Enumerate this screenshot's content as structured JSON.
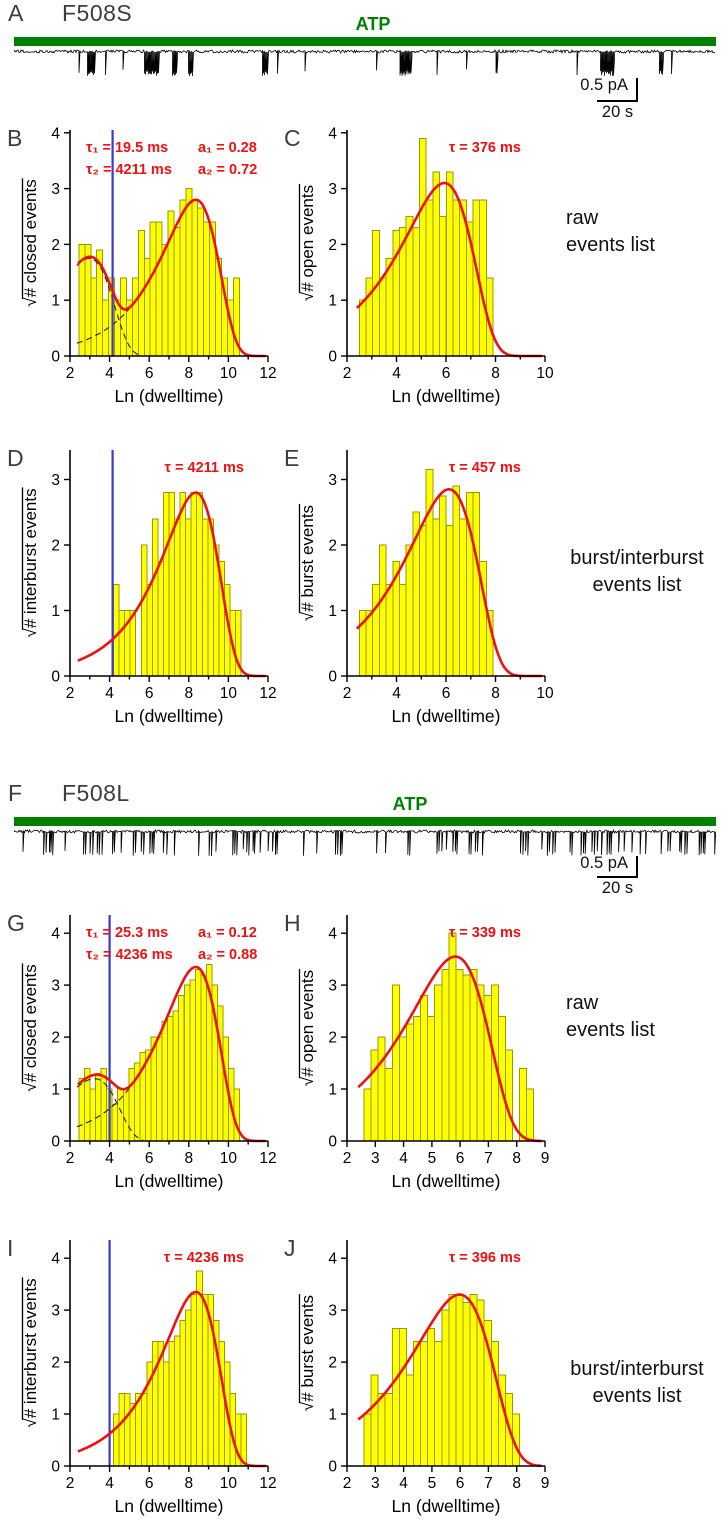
{
  "colors": {
    "bar_fill": "#ffff00",
    "bar_stroke": "#9a9a00",
    "fit_curve": "#ee1111",
    "annotation": "#ee1111",
    "threshold_line": "#3a3acc",
    "atp_green": "#008000",
    "axis": "#000000",
    "trace": "#000000",
    "panel_letter": "#3d3d3d"
  },
  "traces": [
    {
      "panel_label": "A",
      "title": "F508S",
      "atp_label": "ATP",
      "scale_vertical": "0.5 pA",
      "scale_horizontal": "20 s",
      "style": "bursty"
    },
    {
      "panel_label": "F",
      "title": "F508L",
      "atp_label": "ATP",
      "scale_vertical": "0.5 pA",
      "scale_horizontal": "20 s",
      "style": "flickery"
    }
  ],
  "side_labels": [
    {
      "lines": [
        "raw",
        "events list"
      ]
    },
    {
      "lines": [
        "burst/interburst",
        "events list"
      ]
    },
    {
      "lines": [
        "raw",
        "events list"
      ]
    },
    {
      "lines": [
        "burst/interburst",
        "events list"
      ]
    }
  ],
  "chart_data": [
    {
      "type": "bar",
      "panel": "B",
      "ylabel": "# closed events",
      "ylabel_sqrt": true,
      "xlabel": "Ln (dwelltime)",
      "xlim": [
        2,
        12
      ],
      "ylim": [
        0,
        4.05
      ],
      "xticks": [
        2,
        4,
        6,
        8,
        10,
        12
      ],
      "xminor": [
        3,
        5,
        7,
        9,
        11
      ],
      "yticks": [
        0,
        1,
        2,
        3,
        4
      ],
      "annotation_anchor": "left",
      "annotation_lines": [
        [
          "τ₁ = 19.5 ms",
          "a₁ = 0.28"
        ],
        [
          "τ₂ = 4211 ms",
          "a₂ = 0.72"
        ]
      ],
      "threshold_x": 4.15,
      "fit_components": [
        {
          "tau_ms": 19.5,
          "ln_tau": 2.97,
          "peak": 1.75,
          "show_dashed": true
        },
        {
          "tau_ms": 4211,
          "ln_tau": 8.35,
          "peak": 2.8,
          "show_dashed": true
        }
      ],
      "bins": {
        "x0": 2.45,
        "width": 0.3,
        "sqrt_counts": [
          2.0,
          2.0,
          1.4,
          1.9,
          1.0,
          1.4,
          1.0,
          1.4,
          1.0,
          1.4,
          2.25,
          1.75,
          2.4,
          2.4,
          2.0,
          2.6,
          2.3,
          2.8,
          3.0,
          2.8,
          2.65,
          2.4,
          2.4,
          1.75,
          1.4,
          1.0,
          1.4
        ]
      }
    },
    {
      "type": "bar",
      "panel": "C",
      "ylabel": "# open events",
      "ylabel_sqrt": true,
      "xlabel": "Ln (dwelltime)",
      "xlim": [
        2,
        10
      ],
      "ylim": [
        0,
        4.05
      ],
      "xticks": [
        2,
        4,
        6,
        8,
        10
      ],
      "xminor": [
        3,
        5,
        7,
        9
      ],
      "yticks": [
        0,
        1,
        2,
        3,
        4
      ],
      "annotation_anchor": "right",
      "annotation_lines": [
        [
          "τ = 376 ms"
        ]
      ],
      "threshold_x": null,
      "fit_components": [
        {
          "tau_ms": 376,
          "ln_tau": 5.93,
          "peak": 3.1,
          "show_dashed": false
        }
      ],
      "bins": {
        "x0": 2.5,
        "width": 0.27,
        "sqrt_counts": [
          1.0,
          1.4,
          2.25,
          1.4,
          1.75,
          2.25,
          2.3,
          2.5,
          2.3,
          3.9,
          2.8,
          3.3,
          2.5,
          3.3,
          2.8,
          2.8,
          2.4,
          2.8,
          2.8,
          1.4
        ]
      }
    },
    {
      "type": "bar",
      "panel": "D",
      "ylabel": "# interburst events",
      "ylabel_sqrt": true,
      "xlabel": "Ln (dwelltime)",
      "xlim": [
        2,
        12
      ],
      "ylim": [
        0,
        3.45
      ],
      "xticks": [
        2,
        4,
        6,
        8,
        10,
        12
      ],
      "xminor": [
        3,
        5,
        7,
        9,
        11
      ],
      "yticks": [
        0,
        1,
        2,
        3
      ],
      "annotation_anchor": "right",
      "annotation_lines": [
        [
          "τ = 4211 ms"
        ]
      ],
      "threshold_x": 4.15,
      "fit_components": [
        {
          "tau_ms": 4211,
          "ln_tau": 8.35,
          "peak": 2.8,
          "show_dashed": false
        }
      ],
      "bins": {
        "x0": 4.2,
        "width": 0.28,
        "sqrt_counts": [
          1.4,
          1.0,
          1.0,
          1.0,
          0,
          2.0,
          1.4,
          2.4,
          1.75,
          2.8,
          2.8,
          2.4,
          2.8,
          2.4,
          2.8,
          2.8,
          2.4,
          2.4,
          2.0,
          1.75,
          1.4,
          1.0,
          1.0
        ]
      }
    },
    {
      "type": "bar",
      "panel": "E",
      "ylabel": "# burst events",
      "ylabel_sqrt": true,
      "xlabel": "Ln (dwelltime)",
      "xlim": [
        2,
        10
      ],
      "ylim": [
        0,
        3.45
      ],
      "xticks": [
        2,
        4,
        6,
        8,
        10
      ],
      "xminor": [
        3,
        5,
        7,
        9
      ],
      "yticks": [
        0,
        1,
        2,
        3
      ],
      "annotation_anchor": "right",
      "annotation_lines": [
        [
          "τ = 457 ms"
        ]
      ],
      "threshold_x": null,
      "fit_components": [
        {
          "tau_ms": 457,
          "ln_tau": 6.12,
          "peak": 2.85,
          "show_dashed": false
        }
      ],
      "bins": {
        "x0": 2.5,
        "width": 0.27,
        "sqrt_counts": [
          1.0,
          1.0,
          1.4,
          2.0,
          1.4,
          1.75,
          1.4,
          2.0,
          2.5,
          2.3,
          3.15,
          2.4,
          2.75,
          2.3,
          2.9,
          2.4,
          2.8,
          2.8,
          1.75,
          1.0
        ]
      }
    },
    {
      "type": "bar",
      "panel": "G",
      "ylabel": "# closed events",
      "ylabel_sqrt": true,
      "xlabel": "Ln (dwelltime)",
      "xlim": [
        2,
        12
      ],
      "ylim": [
        0,
        4.35
      ],
      "xticks": [
        2,
        4,
        6,
        8,
        10,
        12
      ],
      "xminor": [
        3,
        5,
        7,
        9,
        11
      ],
      "yticks": [
        0,
        1,
        2,
        3,
        4
      ],
      "annotation_anchor": "left",
      "annotation_lines": [
        [
          "τ₁ = 25.3 ms",
          "a₁ = 0.12"
        ],
        [
          "τ₂ = 4236 ms",
          "a₂ = 0.88"
        ]
      ],
      "threshold_x": 4.0,
      "fit_components": [
        {
          "tau_ms": 25.3,
          "ln_tau": 3.23,
          "peak": 1.2,
          "show_dashed": true
        },
        {
          "tau_ms": 4236,
          "ln_tau": 8.35,
          "peak": 3.35,
          "show_dashed": true
        }
      ],
      "bins": {
        "x0": 2.45,
        "width": 0.28,
        "sqrt_counts": [
          1.2,
          1.4,
          1.0,
          1.3,
          1.4,
          1.0,
          0.7,
          1.0,
          1.0,
          1.4,
          1.5,
          1.7,
          1.75,
          2.0,
          2.0,
          2.3,
          2.4,
          2.5,
          2.8,
          3.0,
          3.1,
          3.3,
          3.2,
          3.4,
          3.0,
          2.6,
          2.0,
          1.4,
          1.0
        ]
      }
    },
    {
      "type": "bar",
      "panel": "H",
      "ylabel": "# open events",
      "ylabel_sqrt": true,
      "xlabel": "Ln (dwelltime)",
      "xlim": [
        2,
        9
      ],
      "ylim": [
        0,
        4.35
      ],
      "xticks": [
        2,
        3,
        4,
        5,
        6,
        7,
        8,
        9
      ],
      "xminor": [],
      "yticks": [
        0,
        1,
        2,
        3,
        4
      ],
      "annotation_anchor": "right",
      "annotation_lines": [
        [
          "τ = 339 ms"
        ]
      ],
      "threshold_x": null,
      "fit_components": [
        {
          "tau_ms": 339,
          "ln_tau": 5.83,
          "peak": 3.55,
          "show_dashed": false
        }
      ],
      "bins": {
        "x0": 2.6,
        "width": 0.25,
        "sqrt_counts": [
          1.0,
          1.75,
          2.0,
          1.4,
          3.0,
          2.0,
          2.25,
          2.4,
          2.8,
          2.4,
          3.0,
          3.3,
          4.0,
          3.3,
          3.2,
          3.3,
          3.0,
          2.8,
          3.0,
          2.4,
          1.75,
          0,
          1.4,
          1.0
        ]
      }
    },
    {
      "type": "bar",
      "panel": "I",
      "ylabel": "# interburst events",
      "ylabel_sqrt": true,
      "xlabel": "Ln (dwelltime)",
      "xlim": [
        2,
        12
      ],
      "ylim": [
        0,
        4.35
      ],
      "xticks": [
        2,
        4,
        6,
        8,
        10,
        12
      ],
      "xminor": [
        3,
        5,
        7,
        9,
        11
      ],
      "yticks": [
        0,
        1,
        2,
        3,
        4
      ],
      "annotation_anchor": "right",
      "annotation_lines": [
        [
          "τ = 4236 ms"
        ]
      ],
      "threshold_x": 4.0,
      "fit_components": [
        {
          "tau_ms": 4236,
          "ln_tau": 8.35,
          "peak": 3.35,
          "show_dashed": false
        }
      ],
      "bins": {
        "x0": 4.2,
        "width": 0.28,
        "sqrt_counts": [
          1.0,
          1.4,
          1.4,
          1.2,
          1.4,
          1.4,
          2.0,
          2.4,
          2.4,
          2.0,
          2.4,
          2.5,
          2.8,
          3.0,
          3.3,
          3.75,
          3.3,
          3.3,
          2.8,
          2.4,
          2.0,
          1.4,
          1.0,
          1.0
        ]
      }
    },
    {
      "type": "bar",
      "panel": "J",
      "ylabel": "# burst events",
      "ylabel_sqrt": true,
      "xlabel": "Ln (dwelltime)",
      "xlim": [
        2,
        9
      ],
      "ylim": [
        0,
        4.35
      ],
      "xticks": [
        2,
        3,
        4,
        5,
        6,
        7,
        8,
        9
      ],
      "xminor": [],
      "yticks": [
        0,
        1,
        2,
        3,
        4
      ],
      "annotation_anchor": "right",
      "annotation_lines": [
        [
          "τ = 396 ms"
        ]
      ],
      "threshold_x": null,
      "fit_components": [
        {
          "tau_ms": 396,
          "ln_tau": 5.98,
          "peak": 3.3,
          "show_dashed": false
        }
      ],
      "bins": {
        "x0": 2.6,
        "width": 0.25,
        "sqrt_counts": [
          1.0,
          1.75,
          1.4,
          1.4,
          2.65,
          2.65,
          1.75,
          2.4,
          2.4,
          2.65,
          2.4,
          3.0,
          3.3,
          3.3,
          3.15,
          3.3,
          3.2,
          2.8,
          2.4,
          1.75,
          1.4,
          1.0
        ]
      }
    }
  ]
}
